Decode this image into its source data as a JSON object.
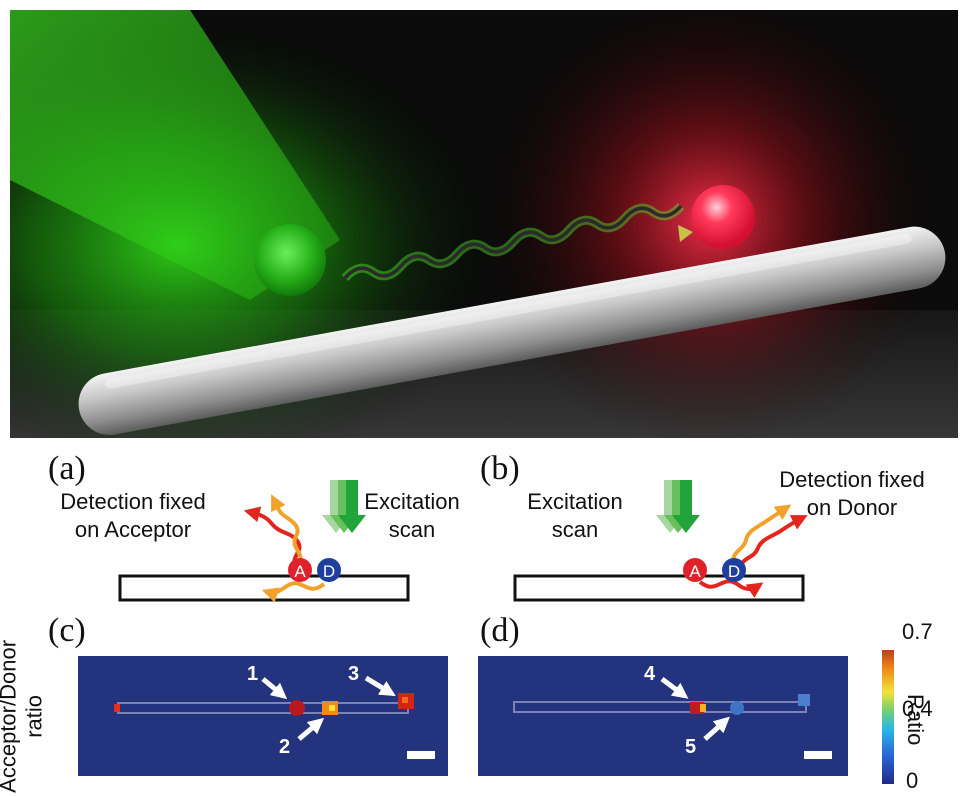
{
  "panels": {
    "a": {
      "letter": "(a)",
      "detection": "Detection fixed\non Acceptor",
      "excitation": "Excitation\nscan"
    },
    "b": {
      "letter": "(b)",
      "detection": "Detection fixed\non Donor",
      "excitation": "Excitation\nscan"
    },
    "c": {
      "letter": "(c)",
      "markers": [
        "1",
        "2",
        "3"
      ]
    },
    "d": {
      "letter": "(d)",
      "markers": [
        "4",
        "5"
      ]
    }
  },
  "molecules": {
    "acceptor": "A",
    "donor": "D"
  },
  "ylabel": "Acceptor/Donor\nratio",
  "colorbar": {
    "label": "Ratio",
    "ticks": [
      "0.7",
      "0.4",
      "0"
    ]
  },
  "colors": {
    "green_beam": "#2ed317",
    "red_emitter": "#ff2a48",
    "acceptor": "#e0202a",
    "donor": "#1f3f9f",
    "map_background": "#24337e",
    "arrow_orange": "#f2a22a",
    "arrow_red": "#e3251d"
  }
}
